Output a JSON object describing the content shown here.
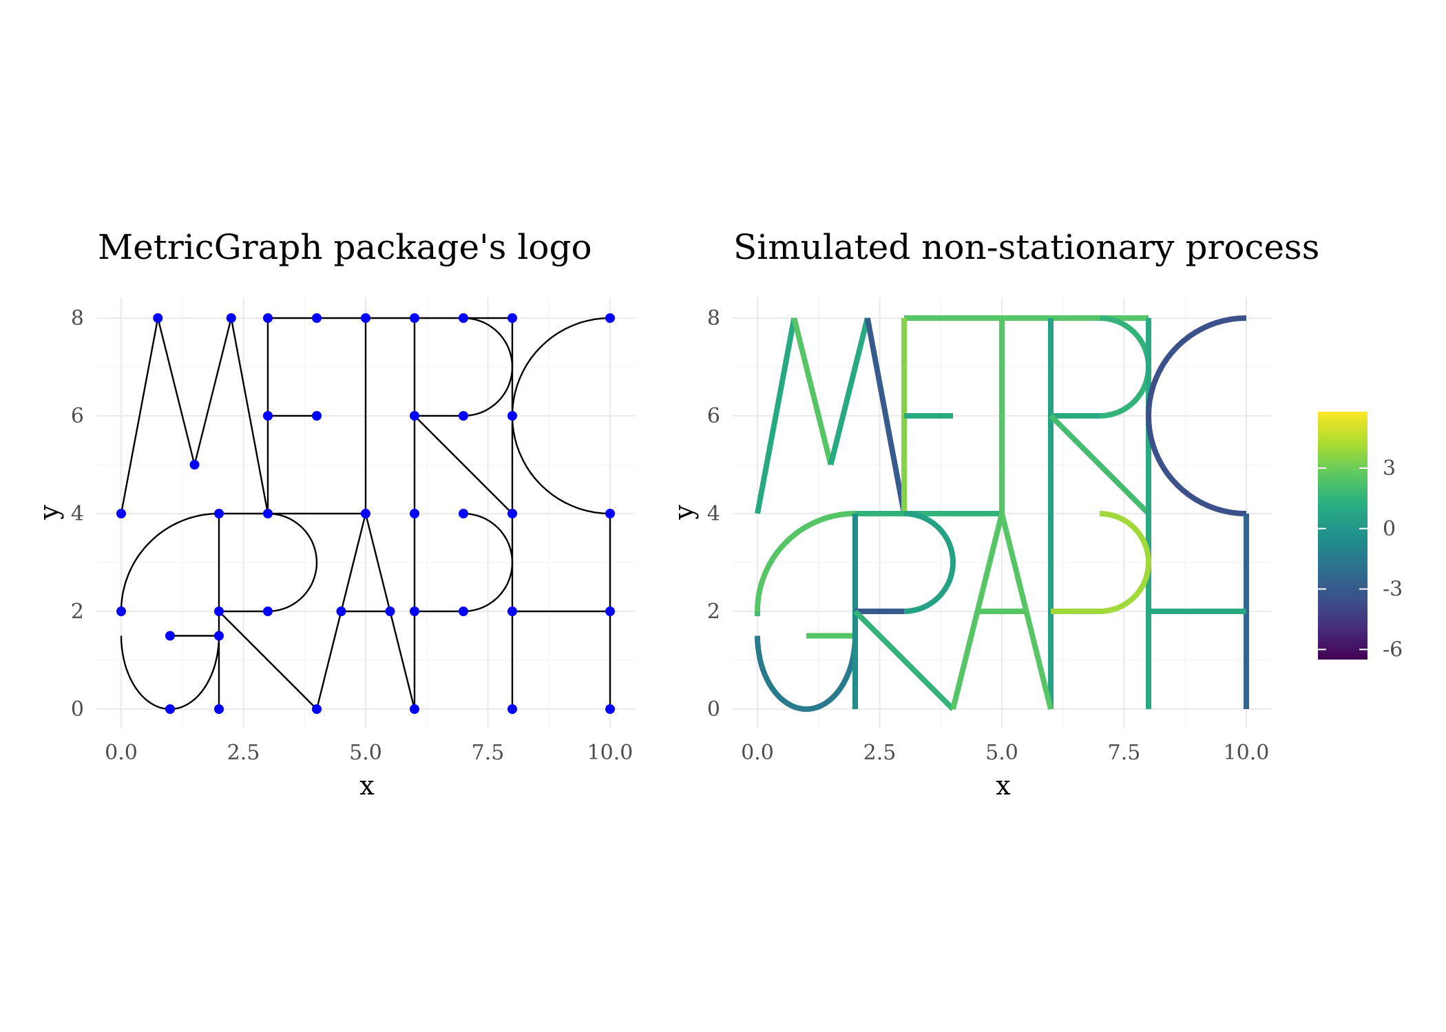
{
  "chart_data": [
    {
      "type": "network",
      "title": "MetricGraph package's logo",
      "xlabel": "x",
      "ylabel": "y",
      "xlim": [
        0,
        10
      ],
      "ylim": [
        0,
        8
      ],
      "x_ticks": [
        "0.0",
        "2.5",
        "5.0",
        "7.5",
        "10.0"
      ],
      "y_ticks": [
        "0",
        "2",
        "4",
        "6",
        "8"
      ],
      "grid": true,
      "edge_color": "#000000",
      "vertex_color": "#0000ff",
      "vertices": [
        [
          0,
          4
        ],
        [
          0.75,
          8
        ],
        [
          1.5,
          5
        ],
        [
          2.25,
          8
        ],
        [
          3,
          4
        ],
        [
          3,
          8
        ],
        [
          4,
          8
        ],
        [
          5,
          8
        ],
        [
          6,
          8
        ],
        [
          7,
          8
        ],
        [
          8,
          8
        ],
        [
          10,
          8
        ],
        [
          3,
          6
        ],
        [
          4,
          6
        ],
        [
          6,
          6
        ],
        [
          7,
          6
        ],
        [
          8,
          6
        ],
        [
          2,
          4
        ],
        [
          5,
          4
        ],
        [
          6,
          4
        ],
        [
          7,
          4
        ],
        [
          8,
          4
        ],
        [
          10,
          4
        ],
        [
          0,
          2
        ],
        [
          2,
          2
        ],
        [
          3,
          2
        ],
        [
          4.5,
          2
        ],
        [
          5.5,
          2
        ],
        [
          6,
          2
        ],
        [
          7,
          2
        ],
        [
          8,
          2
        ],
        [
          10,
          2
        ],
        [
          1,
          1.5
        ],
        [
          2,
          1.5
        ],
        [
          1,
          0
        ],
        [
          2,
          0
        ],
        [
          4,
          0
        ],
        [
          6,
          0
        ],
        [
          8,
          0
        ],
        [
          10,
          0
        ]
      ],
      "edges": [
        {
          "type": "line",
          "from": [
            0,
            4
          ],
          "to": [
            0.75,
            8
          ]
        },
        {
          "type": "line",
          "from": [
            0.75,
            8
          ],
          "to": [
            1.5,
            5
          ]
        },
        {
          "type": "line",
          "from": [
            1.5,
            5
          ],
          "to": [
            2.25,
            8
          ]
        },
        {
          "type": "line",
          "from": [
            2.25,
            8
          ],
          "to": [
            3,
            4
          ]
        },
        {
          "type": "line",
          "from": [
            3,
            8
          ],
          "to": [
            8,
            8
          ]
        },
        {
          "type": "line",
          "from": [
            3,
            8
          ],
          "to": [
            3,
            4
          ]
        },
        {
          "type": "line",
          "from": [
            3,
            6
          ],
          "to": [
            4,
            6
          ]
        },
        {
          "type": "line",
          "from": [
            2,
            4
          ],
          "to": [
            5,
            4
          ]
        },
        {
          "type": "line",
          "from": [
            5,
            8
          ],
          "to": [
            5,
            4
          ]
        },
        {
          "type": "line",
          "from": [
            6,
            8
          ],
          "to": [
            6,
            0
          ]
        },
        {
          "type": "arc",
          "center": [
            7,
            7
          ],
          "r": 1,
          "from_deg": 90,
          "to_deg": -90
        },
        {
          "type": "line",
          "from": [
            6,
            6
          ],
          "to": [
            7,
            6
          ]
        },
        {
          "type": "line",
          "from": [
            6,
            6
          ],
          "to": [
            8,
            4
          ]
        },
        {
          "type": "line",
          "from": [
            8,
            8
          ],
          "to": [
            8,
            0
          ]
        },
        {
          "type": "arc",
          "center": [
            10,
            6
          ],
          "r": 2,
          "from_deg": 90,
          "to_deg": 270
        },
        {
          "type": "line",
          "from": [
            10,
            4
          ],
          "to": [
            10,
            0
          ]
        },
        {
          "type": "arc",
          "center": [
            2,
            2
          ],
          "r": 2,
          "from_deg": 90,
          "to_deg": 180
        },
        {
          "type": "line",
          "from": [
            0,
            2
          ],
          "to": [
            0,
            1.9
          ]
        },
        {
          "type": "arc",
          "center": [
            1,
            1.5
          ],
          "r": 1,
          "ry": 1.5,
          "from_deg": 180,
          "to_deg": 360
        },
        {
          "type": "line",
          "from": [
            1,
            1.5
          ],
          "to": [
            2,
            1.5
          ]
        },
        {
          "type": "line",
          "from": [
            2,
            4
          ],
          "to": [
            2,
            0
          ]
        },
        {
          "type": "arc",
          "center": [
            3,
            3
          ],
          "r": 1,
          "from_deg": 90,
          "to_deg": -90
        },
        {
          "type": "line",
          "from": [
            2,
            2
          ],
          "to": [
            3,
            2
          ]
        },
        {
          "type": "line",
          "from": [
            2,
            2
          ],
          "to": [
            4,
            0
          ]
        },
        {
          "type": "line",
          "from": [
            4,
            0
          ],
          "to": [
            5,
            4
          ]
        },
        {
          "type": "line",
          "from": [
            5,
            4
          ],
          "to": [
            6,
            0
          ]
        },
        {
          "type": "line",
          "from": [
            4.5,
            2
          ],
          "to": [
            5.5,
            2
          ]
        },
        {
          "type": "arc",
          "center": [
            7,
            3
          ],
          "r": 1,
          "from_deg": 90,
          "to_deg": -90
        },
        {
          "type": "line",
          "from": [
            6,
            2
          ],
          "to": [
            7,
            2
          ]
        },
        {
          "type": "line",
          "from": [
            8,
            2
          ],
          "to": [
            10,
            2
          ]
        }
      ]
    },
    {
      "type": "heatmap",
      "title": "Simulated non-stationary process",
      "xlabel": "x",
      "ylabel": "y",
      "xlim": [
        0,
        10
      ],
      "ylim": [
        0,
        8
      ],
      "x_ticks": [
        "0.0",
        "2.5",
        "5.0",
        "7.5",
        "10.0"
      ],
      "y_ticks": [
        "0",
        "2",
        "4",
        "6",
        "8"
      ],
      "grid": true,
      "colorscale": "viridis",
      "color_range": [
        -6.5,
        5.8
      ],
      "legend_ticks": [
        "3",
        "0",
        "-3",
        "-6"
      ],
      "legend_tick_values": [
        3,
        0,
        -3,
        -6
      ],
      "legend_placement": "right",
      "field_values_per_edge": [
        1.0,
        2.5,
        1.0,
        -3.0,
        2.5,
        3.5,
        1.0,
        1.5,
        2.5,
        0.5,
        1.5,
        1.0,
        2.0,
        1.0,
        -3.5,
        -2.5,
        2.5,
        2.0,
        -1.5,
        2.5,
        -0.5,
        0.5,
        -3.0,
        1.5,
        2.5,
        2.5,
        2.5,
        4.0,
        4.0,
        1.0
      ]
    }
  ]
}
